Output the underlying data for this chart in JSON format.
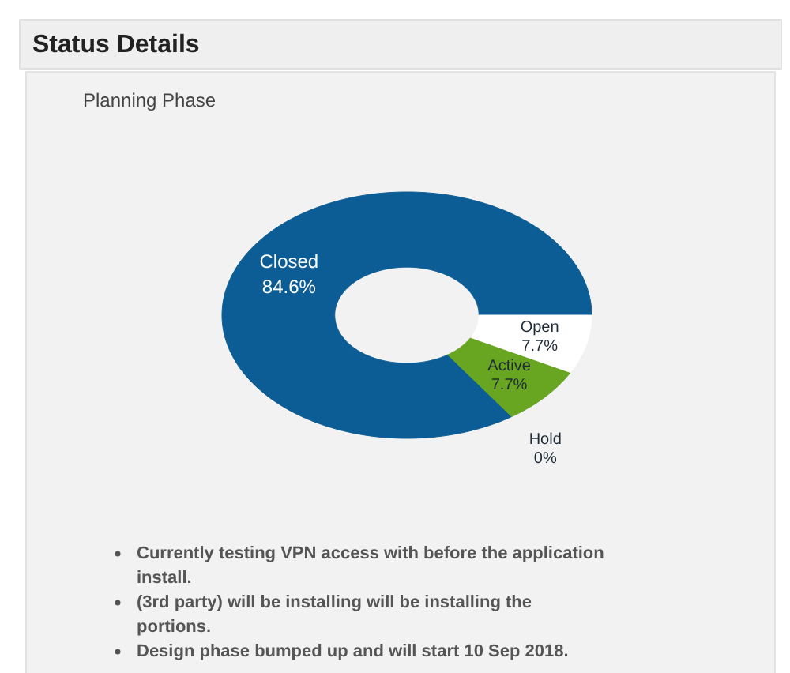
{
  "chart_data": {
    "type": "donut",
    "title": "Status Details",
    "subtitle": "Planning Phase",
    "categories": [
      "Closed",
      "Hold",
      "Active",
      "Open"
    ],
    "values": [
      84.6,
      0,
      7.7,
      7.7
    ],
    "colors": [
      "#0c5d95",
      null,
      "#68a521",
      "#ffffff"
    ],
    "value_labels": [
      "84.6%",
      "0%",
      "7.7%",
      "7.7%"
    ],
    "annotations": [
      "Currently testing VPN access with before the application install.",
      "(3rd party) will be installing will be installing the portions.",
      "Design phase bumped up and will start 10 Sep 2018."
    ]
  }
}
